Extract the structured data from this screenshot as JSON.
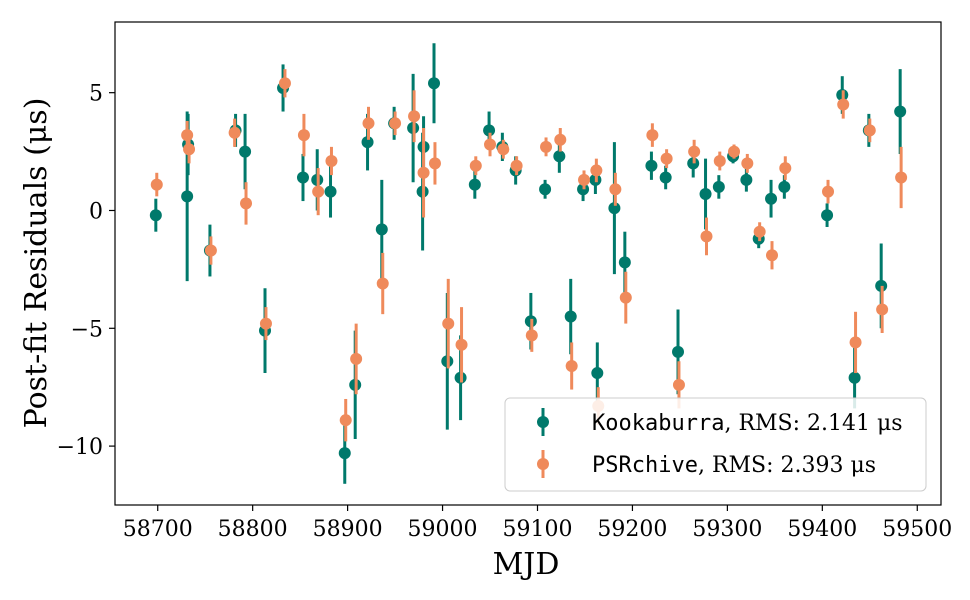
{
  "chart_data": {
    "type": "scatter",
    "xlabel": "MJD",
    "ylabel": "Post-fit Residuals (μs)",
    "xlim": [
      58655,
      59525
    ],
    "ylim": [
      -12.5,
      8.0
    ],
    "xticks": [
      58700,
      58800,
      58900,
      59000,
      59100,
      59200,
      59300,
      59400,
      59500
    ],
    "yticks": [
      5,
      0,
      -5,
      -10
    ],
    "ytick_labels": [
      "5",
      "0",
      "−5",
      "−10"
    ],
    "grid": false,
    "legend_position": "bottom-right",
    "series": [
      {
        "name": "Kookaburra",
        "legend_suffix": ", RMS: 2.141 μs",
        "color": "#00796b",
        "points": [
          {
            "x": 58698,
            "y": -0.2,
            "err": 0.7
          },
          {
            "x": 58731,
            "y": 0.6,
            "err": 3.6
          },
          {
            "x": 58732,
            "y": 2.8,
            "err": 1.3
          },
          {
            "x": 58755,
            "y": -1.7,
            "err": 1.1
          },
          {
            "x": 58782,
            "y": 3.4,
            "err": 0.7
          },
          {
            "x": 58792,
            "y": 2.5,
            "err": 1.6
          },
          {
            "x": 58813,
            "y": -5.1,
            "err": 1.8
          },
          {
            "x": 58832,
            "y": 5.2,
            "err": 1.0
          },
          {
            "x": 58853,
            "y": 1.4,
            "err": 1.0
          },
          {
            "x": 58868,
            "y": 1.3,
            "err": 1.3
          },
          {
            "x": 58882,
            "y": 0.8,
            "err": 1.1
          },
          {
            "x": 58897,
            "y": -10.3,
            "err": 1.3
          },
          {
            "x": 58908,
            "y": -7.4,
            "err": 2.3
          },
          {
            "x": 58921,
            "y": 2.9,
            "err": 1.2
          },
          {
            "x": 58936,
            "y": -0.8,
            "err": 2.1
          },
          {
            "x": 58949,
            "y": 3.7,
            "err": 0.7
          },
          {
            "x": 58969,
            "y": 3.5,
            "err": 2.3
          },
          {
            "x": 58979,
            "y": 0.8,
            "err": 2.5
          },
          {
            "x": 58980,
            "y": 2.7,
            "err": 1.3
          },
          {
            "x": 58991,
            "y": 5.4,
            "err": 1.7
          },
          {
            "x": 59005,
            "y": -6.4,
            "err": 2.9
          },
          {
            "x": 59019,
            "y": -7.1,
            "err": 1.8
          },
          {
            "x": 59034,
            "y": 1.1,
            "err": 0.6
          },
          {
            "x": 59049,
            "y": 3.4,
            "err": 0.8
          },
          {
            "x": 59063,
            "y": 2.7,
            "err": 0.6
          },
          {
            "x": 59077,
            "y": 1.7,
            "err": 0.6
          },
          {
            "x": 59093,
            "y": -4.7,
            "err": 1.2
          },
          {
            "x": 59108,
            "y": 0.9,
            "err": 0.4
          },
          {
            "x": 59123,
            "y": 2.3,
            "err": 0.7
          },
          {
            "x": 59135,
            "y": -4.5,
            "err": 1.6
          },
          {
            "x": 59148,
            "y": 0.9,
            "err": 0.5
          },
          {
            "x": 59161,
            "y": 1.3,
            "err": 0.6
          },
          {
            "x": 59163,
            "y": -6.9,
            "err": 1.3
          },
          {
            "x": 59181,
            "y": 0.1,
            "err": 2.8
          },
          {
            "x": 59192,
            "y": -2.2,
            "err": 1.3
          },
          {
            "x": 59220,
            "y": 1.9,
            "err": 0.6
          },
          {
            "x": 59235,
            "y": 1.4,
            "err": 0.5
          },
          {
            "x": 59248,
            "y": -6.0,
            "err": 1.8
          },
          {
            "x": 59264,
            "y": 2.0,
            "err": 0.6
          },
          {
            "x": 59277,
            "y": 0.7,
            "err": 1.5
          },
          {
            "x": 59291,
            "y": 1.0,
            "err": 0.5
          },
          {
            "x": 59306,
            "y": 2.3,
            "err": 0.3
          },
          {
            "x": 59320,
            "y": 1.3,
            "err": 0.5
          },
          {
            "x": 59333,
            "y": -1.2,
            "err": 0.4
          },
          {
            "x": 59346,
            "y": 0.5,
            "err": 0.8
          },
          {
            "x": 59360,
            "y": 1.0,
            "err": 0.5
          },
          {
            "x": 59405,
            "y": -0.2,
            "err": 0.5
          },
          {
            "x": 59421,
            "y": 4.9,
            "err": 0.8
          },
          {
            "x": 59434,
            "y": -7.1,
            "err": 1.3
          },
          {
            "x": 59449,
            "y": 3.4,
            "err": 0.7
          },
          {
            "x": 59462,
            "y": -3.2,
            "err": 1.8
          },
          {
            "x": 59482,
            "y": 4.2,
            "err": 1.8
          }
        ]
      },
      {
        "name": "PSRchive",
        "legend_suffix": ", RMS: 2.393 μs",
        "color": "#ef8a5b",
        "points": [
          {
            "x": 58699,
            "y": 1.1,
            "err": 0.5
          },
          {
            "x": 58731,
            "y": 3.2,
            "err": 0.6
          },
          {
            "x": 58733,
            "y": 2.6,
            "err": 0.6
          },
          {
            "x": 58756,
            "y": -1.7,
            "err": 0.6
          },
          {
            "x": 58781,
            "y": 3.3,
            "err": 0.6
          },
          {
            "x": 58793,
            "y": 0.3,
            "err": 0.9
          },
          {
            "x": 58814,
            "y": -4.8,
            "err": 0.7
          },
          {
            "x": 58834,
            "y": 5.4,
            "err": 0.6
          },
          {
            "x": 58854,
            "y": 3.2,
            "err": 0.9
          },
          {
            "x": 58869,
            "y": 0.8,
            "err": 1.0
          },
          {
            "x": 58883,
            "y": 2.1,
            "err": 0.6
          },
          {
            "x": 58898,
            "y": -8.9,
            "err": 0.9
          },
          {
            "x": 58909,
            "y": -6.3,
            "err": 1.5
          },
          {
            "x": 58922,
            "y": 3.7,
            "err": 0.7
          },
          {
            "x": 58937,
            "y": -3.1,
            "err": 1.3
          },
          {
            "x": 58950,
            "y": 3.7,
            "err": 0.5
          },
          {
            "x": 58970,
            "y": 4.0,
            "err": 1.1
          },
          {
            "x": 58980,
            "y": 1.6,
            "err": 1.9
          },
          {
            "x": 58992,
            "y": 2.0,
            "err": 0.9
          },
          {
            "x": 59006,
            "y": -4.8,
            "err": 1.9
          },
          {
            "x": 59020,
            "y": -5.7,
            "err": 1.6
          },
          {
            "x": 59035,
            "y": 1.9,
            "err": 0.4
          },
          {
            "x": 59050,
            "y": 2.8,
            "err": 0.5
          },
          {
            "x": 59064,
            "y": 2.6,
            "err": 0.4
          },
          {
            "x": 59078,
            "y": 1.9,
            "err": 0.4
          },
          {
            "x": 59094,
            "y": -5.3,
            "err": 0.7
          },
          {
            "x": 59109,
            "y": 2.7,
            "err": 0.4
          },
          {
            "x": 59124,
            "y": 3.0,
            "err": 0.5
          },
          {
            "x": 59136,
            "y": -6.6,
            "err": 1.0
          },
          {
            "x": 59149,
            "y": 1.3,
            "err": 0.4
          },
          {
            "x": 59162,
            "y": 1.7,
            "err": 0.5
          },
          {
            "x": 59164,
            "y": -8.3,
            "err": 0.8
          },
          {
            "x": 59182,
            "y": 0.9,
            "err": 0.7
          },
          {
            "x": 59193,
            "y": -3.7,
            "err": 1.1
          },
          {
            "x": 59221,
            "y": 3.2,
            "err": 0.5
          },
          {
            "x": 59236,
            "y": 2.2,
            "err": 0.4
          },
          {
            "x": 59249,
            "y": -7.4,
            "err": 1.0
          },
          {
            "x": 59265,
            "y": 2.5,
            "err": 0.5
          },
          {
            "x": 59278,
            "y": -1.1,
            "err": 0.8
          },
          {
            "x": 59292,
            "y": 2.1,
            "err": 0.4
          },
          {
            "x": 59307,
            "y": 2.5,
            "err": 0.3
          },
          {
            "x": 59321,
            "y": 2.0,
            "err": 0.4
          },
          {
            "x": 59334,
            "y": -0.9,
            "err": 0.4
          },
          {
            "x": 59347,
            "y": -1.9,
            "err": 0.6
          },
          {
            "x": 59361,
            "y": 1.8,
            "err": 0.5
          },
          {
            "x": 59406,
            "y": 0.8,
            "err": 0.5
          },
          {
            "x": 59422,
            "y": 4.5,
            "err": 0.6
          },
          {
            "x": 59435,
            "y": -5.6,
            "err": 1.3
          },
          {
            "x": 59450,
            "y": 3.4,
            "err": 0.5
          },
          {
            "x": 59463,
            "y": -4.2,
            "err": 1.0
          },
          {
            "x": 59483,
            "y": 1.4,
            "err": 1.3
          }
        ]
      }
    ]
  }
}
